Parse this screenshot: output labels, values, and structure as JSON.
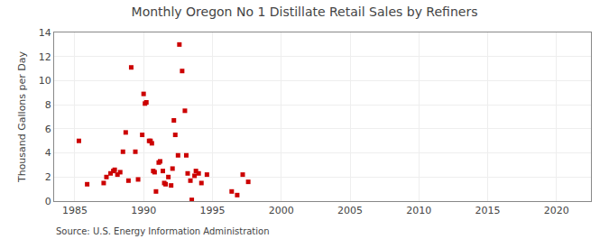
{
  "chart_data": {
    "type": "scatter",
    "title": "Monthly Oregon No 1 Distillate Retail Sales by Refiners",
    "ylabel": "Thousand Gallons per Day",
    "annotations": [
      "Source: U.S. Energy Information Administration"
    ],
    "color": "#cc0000",
    "marker": "square",
    "grid": true,
    "xlim": [
      1983.5,
      2022.5
    ],
    "ylim": [
      0,
      14
    ],
    "xticks": [
      1985,
      1990,
      1995,
      2000,
      2005,
      2010,
      2015,
      2020
    ],
    "yticks": [
      0,
      2,
      4,
      6,
      8,
      10,
      12,
      14
    ],
    "x": [
      1985.3,
      1985.9,
      1987.1,
      1987.3,
      1987.6,
      1987.8,
      1987.9,
      1988.1,
      1988.3,
      1988.5,
      1988.7,
      1988.9,
      1989.1,
      1989.4,
      1989.6,
      1989.9,
      1990.0,
      1990.1,
      1990.2,
      1990.4,
      1990.5,
      1990.6,
      1990.7,
      1990.8,
      1990.9,
      1991.1,
      1991.2,
      1991.4,
      1991.5,
      1991.6,
      1991.8,
      1992.0,
      1992.1,
      1992.2,
      1992.3,
      1992.5,
      1992.6,
      1992.8,
      1993.0,
      1993.1,
      1993.2,
      1993.4,
      1993.5,
      1993.7,
      1993.8,
      1994.0,
      1994.2,
      1994.6,
      1996.4,
      1996.8,
      1997.2,
      1997.6
    ],
    "values": [
      5.0,
      1.4,
      1.5,
      2.0,
      2.3,
      2.5,
      2.6,
      2.2,
      2.4,
      4.1,
      5.7,
      1.7,
      11.1,
      4.1,
      1.8,
      5.5,
      8.9,
      8.1,
      8.2,
      5.0,
      5.0,
      4.8,
      2.5,
      2.4,
      0.8,
      3.2,
      3.3,
      2.5,
      1.5,
      1.4,
      2.0,
      1.3,
      2.7,
      6.7,
      5.5,
      3.8,
      13.0,
      10.8,
      7.5,
      3.8,
      2.3,
      1.7,
      0.1,
      2.1,
      2.5,
      2.3,
      1.5,
      2.2,
      0.8,
      0.5,
      2.2,
      1.6
    ]
  }
}
